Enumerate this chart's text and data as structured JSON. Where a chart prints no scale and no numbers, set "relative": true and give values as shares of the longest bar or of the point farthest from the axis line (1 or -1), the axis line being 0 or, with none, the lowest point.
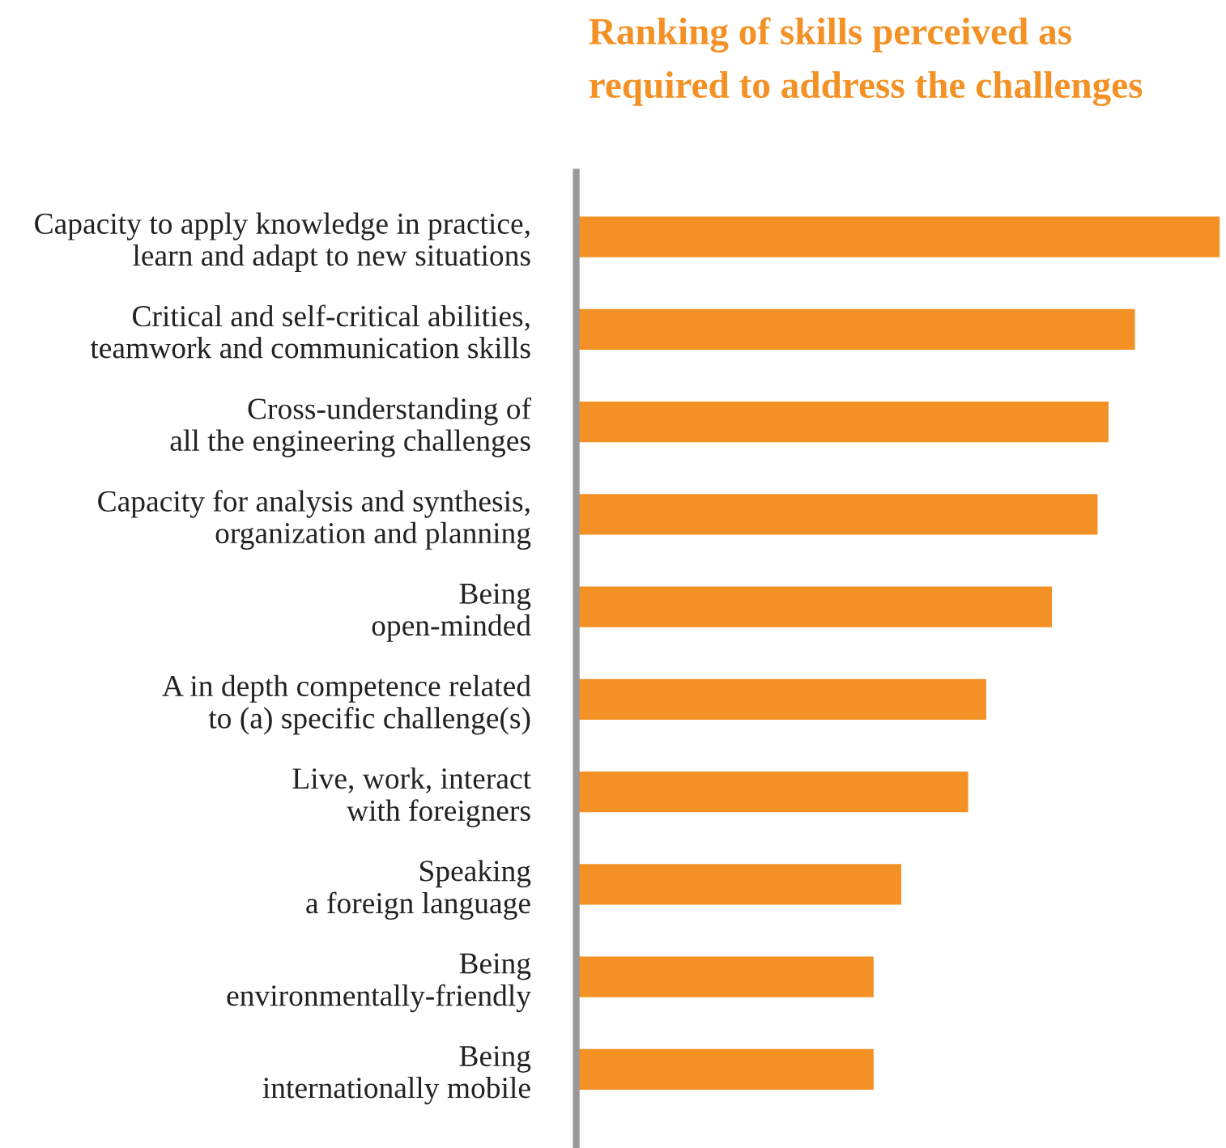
{
  "chart_data": {
    "type": "bar",
    "orientation": "horizontal",
    "relative": true,
    "title": "Ranking of skills perceived as\nrequired to address the challenges",
    "categories": [
      "Capacity to apply knowledge in practice,\nlearn and adapt to new situations",
      "Critical and self-critical abilities,\nteamwork and communication skills",
      "Cross-understanding of\nall the engineering challenges",
      "Capacity for analysis and synthesis,\norganization and planning",
      "Being\nopen-minded",
      "A in depth competence related\nto (a) specific challenge(s)",
      "Live, work, interact\nwith foreigners",
      "Speaking\na foreign language",
      "Being\nenvironmentally-friendly",
      "Being\ninternationally mobile"
    ],
    "values": [
      1,
      0.868,
      0.827,
      0.81,
      0.739,
      0.637,
      0.609,
      0.505,
      0.462,
      0.462
    ],
    "color": "#f39125",
    "grid": false,
    "legend": false
  }
}
